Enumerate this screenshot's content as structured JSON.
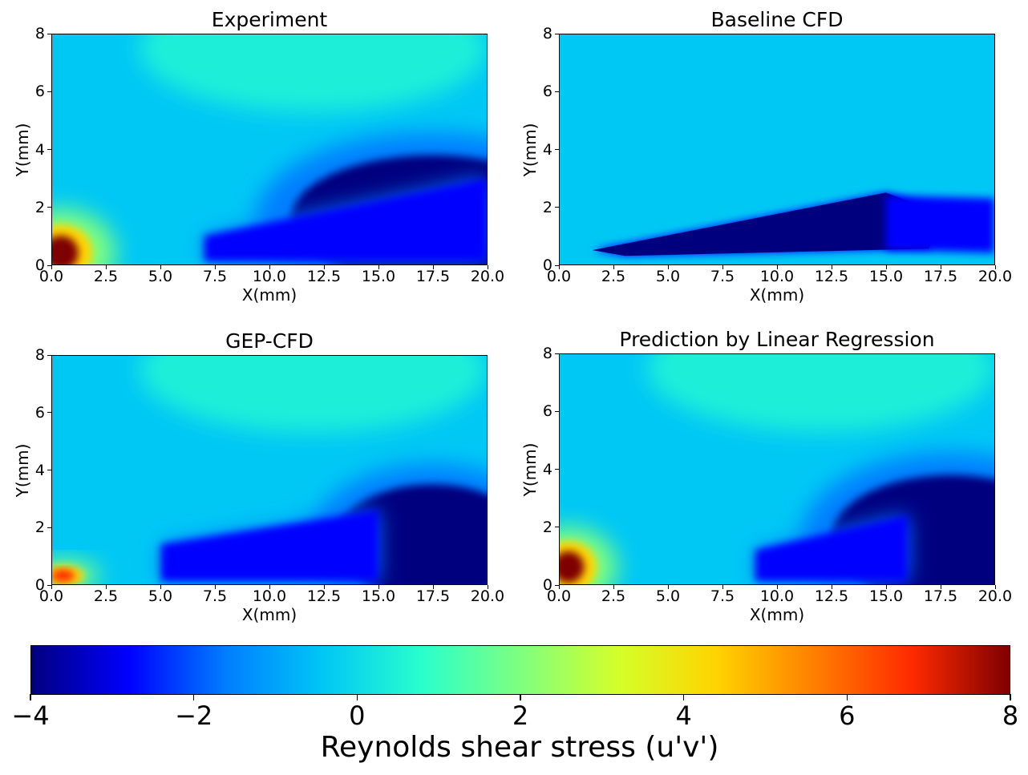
{
  "chart_data": [
    {
      "type": "heatmap",
      "title": "Experiment",
      "xlabel": "X(mm)",
      "ylabel": "Y(mm)",
      "xlim": [
        0,
        20
      ],
      "ylim": [
        0,
        8
      ],
      "xticks": [
        "0.0",
        "2.5",
        "5.0",
        "7.5",
        "10.0",
        "12.5",
        "15.0",
        "17.5",
        "20.0"
      ],
      "yticks": [
        "0",
        "2",
        "4",
        "6",
        "8"
      ],
      "features": [
        {
          "kind": "peak",
          "x": 0.4,
          "y": 0.4,
          "rx": 1.8,
          "ry": 1.1,
          "value": 7.5
        },
        {
          "kind": "trough",
          "x": 17.5,
          "y": 1.6,
          "rx": 6.5,
          "ry": 2.2,
          "value": -4
        },
        {
          "kind": "plume",
          "from": [
            7,
            1.0
          ],
          "to": [
            20,
            3.0
          ],
          "value": -2.5
        }
      ]
    },
    {
      "type": "heatmap",
      "title": "Baseline CFD",
      "xlabel": "X(mm)",
      "ylabel": "Y(mm)",
      "xlim": [
        0,
        20
      ],
      "ylim": [
        0,
        8
      ],
      "xticks": [
        "0.0",
        "2.5",
        "5.0",
        "7.5",
        "10.0",
        "12.5",
        "15.0",
        "17.5",
        "20.0"
      ],
      "yticks": [
        "0",
        "2",
        "4",
        "6",
        "8"
      ],
      "features": [
        {
          "kind": "wedge",
          "from": [
            1.5,
            0.5
          ],
          "to": [
            15,
            2.5
          ],
          "value": -4
        },
        {
          "kind": "tail",
          "from": [
            15,
            1.4
          ],
          "to": [
            20,
            1.4
          ],
          "value": -3
        }
      ]
    },
    {
      "type": "heatmap",
      "title": "GEP-CFD",
      "xlabel": "X(mm)",
      "ylabel": "Y(mm)",
      "xlim": [
        0,
        20
      ],
      "ylim": [
        0,
        8
      ],
      "xticks": [
        "0.0",
        "2.5",
        "5.0",
        "7.5",
        "10.0",
        "12.5",
        "15.0",
        "17.5",
        "20.0"
      ],
      "yticks": [
        "0",
        "2",
        "4",
        "6",
        "8"
      ],
      "features": [
        {
          "kind": "peak",
          "x": 0.5,
          "y": 0.3,
          "rx": 1.2,
          "ry": 0.4,
          "value": 7
        },
        {
          "kind": "trough",
          "x": 17.5,
          "y": 1.5,
          "rx": 4.5,
          "ry": 2.0,
          "value": -4
        },
        {
          "kind": "band",
          "from": [
            5,
            1.4
          ],
          "to": [
            15,
            2.6
          ],
          "value": -2.8
        }
      ]
    },
    {
      "type": "heatmap",
      "title": "Prediction by Linear Regression",
      "xlabel": "X(mm)",
      "ylabel": "Y(mm)",
      "xlim": [
        0,
        20
      ],
      "ylim": [
        0,
        8
      ],
      "xticks": [
        "0.0",
        "2.5",
        "5.0",
        "7.5",
        "10.0",
        "12.5",
        "15.0",
        "17.5",
        "20.0"
      ],
      "yticks": [
        "0",
        "2",
        "4",
        "6",
        "8"
      ],
      "features": [
        {
          "kind": "peak",
          "x": 0.4,
          "y": 0.6,
          "rx": 1.6,
          "ry": 1.0,
          "value": 7.5
        },
        {
          "kind": "trough",
          "x": 18,
          "y": 1.6,
          "rx": 5.5,
          "ry": 2.2,
          "value": -4
        },
        {
          "kind": "band",
          "from": [
            9,
            1.2
          ],
          "to": [
            16,
            2.4
          ],
          "value": -3
        }
      ]
    }
  ],
  "colorbar": {
    "label": "Reynolds shear stress (u'v')",
    "range": [
      -4,
      8
    ],
    "ticks": [
      -4,
      -2,
      0,
      2,
      4,
      6,
      8
    ],
    "tick_labels": [
      "−4",
      "−2",
      "0",
      "2",
      "4",
      "6",
      "8"
    ],
    "colormap": "jet",
    "stops": [
      "#00007f",
      "#0000ff",
      "#007fff",
      "#00c8f5",
      "#2affcc",
      "#7fff7f",
      "#d4ff2a",
      "#ffd400",
      "#ff7f00",
      "#ff2a00",
      "#7f0000"
    ]
  }
}
